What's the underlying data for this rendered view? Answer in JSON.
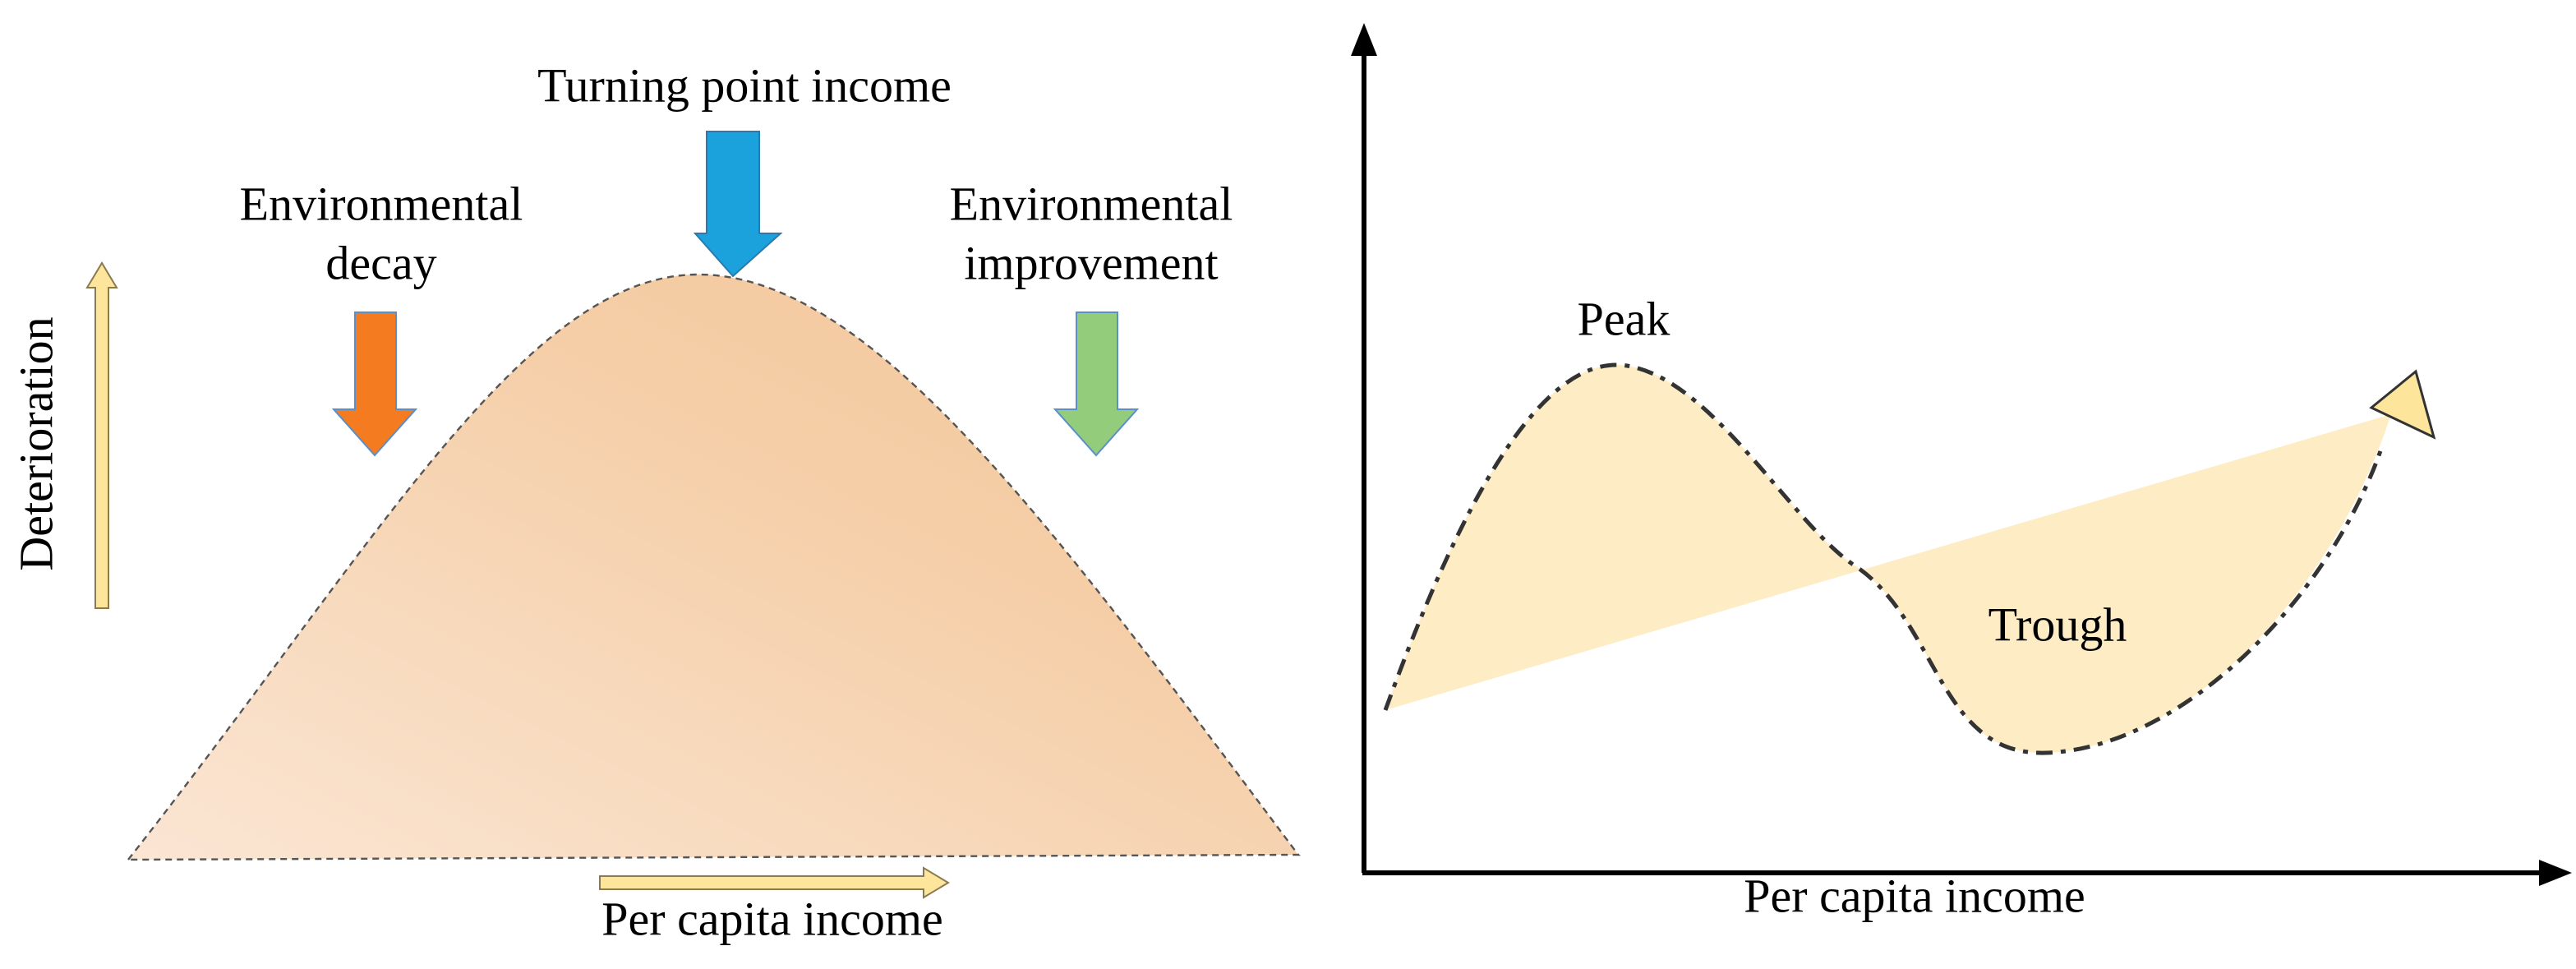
{
  "left_panel": {
    "turning_point_label": "Turning point income",
    "decay_label": [
      "Environmental",
      "decay"
    ],
    "improvement_label": [
      "Environmental",
      "improvement"
    ],
    "y_axis_label": "Deterioration",
    "x_axis_label": "Per capita income"
  },
  "right_panel": {
    "peak_label": "Peak",
    "trough_label": "Trough",
    "x_axis_label": "Per capita income"
  }
}
